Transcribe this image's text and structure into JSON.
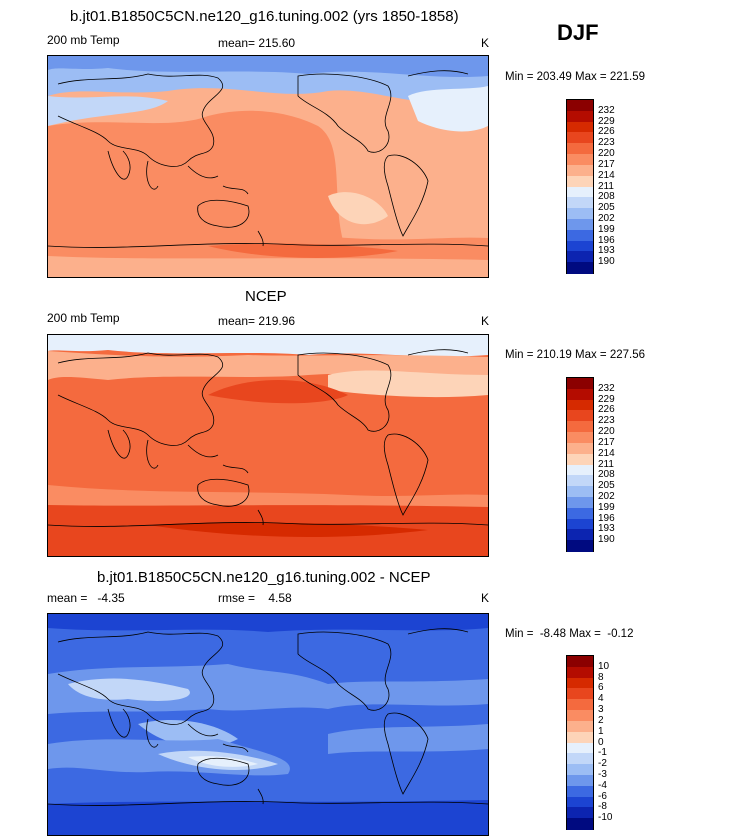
{
  "season": "DJF",
  "panels": [
    {
      "title": "b.jt01.B1850C5CN.ne120_g16.tuning.002 (yrs 1850-1858)",
      "left_label": "200 mb Temp",
      "center_label": "mean= 215.60",
      "right_label": "K",
      "minmax": "Min = 203.49 Max = 221.59",
      "scale": "abs"
    },
    {
      "title": "NCEP",
      "left_label": "200 mb Temp",
      "center_label": "mean= 219.96",
      "right_label": "K",
      "minmax": "Min = 210.19 Max = 227.56",
      "scale": "abs"
    },
    {
      "title": "b.jt01.B1850C5CN.ne120_g16.tuning.002 - NCEP",
      "left_label": "mean =   -4.35",
      "center_label": "rmse =    4.58",
      "right_label": "K",
      "minmax": "Min =  -8.48 Max =  -0.12",
      "scale": "diff"
    }
  ],
  "colorbars": {
    "abs": {
      "labels": [
        "232",
        "229",
        "226",
        "223",
        "220",
        "217",
        "214",
        "211",
        "208",
        "205",
        "202",
        "199",
        "196",
        "193",
        "190"
      ],
      "colors": [
        "#8b0000",
        "#b40c00",
        "#d62a00",
        "#e8461e",
        "#f46a3e",
        "#fa8c62",
        "#fcb08c",
        "#fdd4b8",
        "#e6f0fc",
        "#c2d7f8",
        "#9cbdf4",
        "#6e97ec",
        "#3c69e2",
        "#1c44d2",
        "#0c24b0",
        "#000a80"
      ]
    },
    "diff": {
      "labels": [
        "10",
        "8",
        "6",
        "4",
        "3",
        "2",
        "1",
        "0",
        "-1",
        "-2",
        "-3",
        "-4",
        "-6",
        "-8",
        "-10"
      ],
      "colors": [
        "#8b0000",
        "#b40c00",
        "#d62a00",
        "#e8461e",
        "#f46a3e",
        "#fa8c62",
        "#fcb08c",
        "#fdd4b8",
        "#e6f0fc",
        "#c2d7f8",
        "#9cbdf4",
        "#6e97ec",
        "#3c69e2",
        "#1c44d2",
        "#0c24b0",
        "#000a80"
      ]
    }
  },
  "chart_data": [
    {
      "type": "heatmap",
      "title": "b.jt01.B1850C5CN.ne120_g16.tuning.002 (yrs 1850-1858)",
      "variable": "200 mb Temp",
      "units": "K",
      "mean": 215.6,
      "min": 203.49,
      "max": 221.59,
      "contour_levels": [
        190,
        193,
        196,
        199,
        202,
        205,
        208,
        211,
        214,
        217,
        220,
        223,
        226,
        229,
        232
      ]
    },
    {
      "type": "heatmap",
      "title": "NCEP",
      "variable": "200 mb Temp",
      "units": "K",
      "mean": 219.96,
      "min": 210.19,
      "max": 227.56,
      "contour_levels": [
        190,
        193,
        196,
        199,
        202,
        205,
        208,
        211,
        214,
        217,
        220,
        223,
        226,
        229,
        232
      ]
    },
    {
      "type": "heatmap",
      "title": "b.jt01.B1850C5CN.ne120_g16.tuning.002 - NCEP",
      "units": "K",
      "mean": -4.35,
      "rmse": 4.58,
      "min": -8.48,
      "max": -0.12,
      "contour_levels": [
        -10,
        -8,
        -6,
        -4,
        -3,
        -2,
        -1,
        0,
        1,
        2,
        3,
        4,
        6,
        8,
        10
      ]
    }
  ]
}
